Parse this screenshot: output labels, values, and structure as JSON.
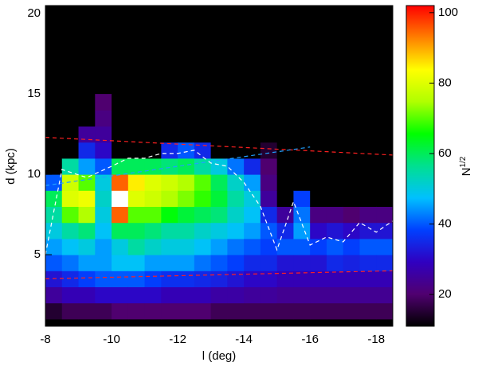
{
  "chart_data": {
    "type": "heatmap",
    "xlabel": "l (deg)",
    "ylabel": "d (kpc)",
    "colorbar_label": {
      "base": "N",
      "sup": "1/2"
    },
    "xlim": [
      -8,
      -18.5
    ],
    "xticks": [
      -8,
      -10,
      -12,
      -14,
      -16,
      -18
    ],
    "ylim": [
      0.55,
      20.5
    ],
    "yticks": [
      5,
      10,
      15,
      20
    ],
    "clim": [
      11,
      102
    ],
    "cticks": [
      20,
      40,
      60,
      80,
      100
    ],
    "colormap": [
      "#000000",
      "#500070",
      "#3000c0",
      "#0040ff",
      "#00c0ff",
      "#00e090",
      "#00ff00",
      "#b0ff00",
      "#ffff00",
      "#ff8000",
      "#ff0000"
    ],
    "over_color": "#ffffff",
    "background": "#000000",
    "xbins": [
      -8,
      -8.5,
      -9,
      -9.5,
      -10,
      -10.5,
      -11,
      -11.5,
      -12,
      -12.5,
      -13,
      -13.5,
      -14,
      -14.5,
      -15,
      -15.5,
      -16,
      -16.5,
      -17,
      -17.5,
      -18,
      -18.5
    ],
    "ybins": [
      1,
      2,
      3,
      4,
      5,
      6,
      7,
      8,
      9,
      10,
      11,
      12,
      13,
      14,
      15
    ],
    "z": [
      [
        15,
        25,
        32,
        40,
        45,
        50,
        55,
        60,
        40,
        10,
        10,
        10,
        10,
        10
      ],
      [
        18,
        28,
        35,
        42,
        48,
        55,
        70,
        80,
        78,
        55,
        10,
        10,
        10,
        10
      ],
      [
        18,
        28,
        38,
        45,
        50,
        58,
        75,
        82,
        70,
        45,
        35,
        25,
        10,
        10
      ],
      [
        18,
        30,
        40,
        45,
        45,
        48,
        50,
        52,
        50,
        40,
        30,
        25,
        22,
        20
      ],
      [
        20,
        30,
        40,
        48,
        50,
        60,
        95,
        105,
        95,
        60,
        10,
        10,
        10,
        10
      ],
      [
        20,
        30,
        40,
        48,
        55,
        60,
        70,
        80,
        85,
        60,
        10,
        10,
        10,
        10
      ],
      [
        20,
        30,
        38,
        45,
        52,
        58,
        70,
        78,
        80,
        60,
        10,
        10,
        10,
        10
      ],
      [
        20,
        28,
        36,
        45,
        50,
        55,
        65,
        75,
        78,
        58,
        35,
        10,
        10,
        10
      ],
      [
        20,
        28,
        36,
        45,
        50,
        55,
        62,
        72,
        75,
        60,
        40,
        10,
        10,
        10
      ],
      [
        20,
        28,
        35,
        42,
        48,
        52,
        60,
        68,
        70,
        55,
        35,
        10,
        10,
        10
      ],
      [
        18,
        26,
        34,
        40,
        45,
        50,
        58,
        62,
        60,
        50,
        10,
        10,
        10,
        10
      ],
      [
        18,
        26,
        32,
        38,
        42,
        48,
        52,
        55,
        52,
        42,
        10,
        10,
        10,
        10
      ],
      [
        18,
        25,
        30,
        35,
        40,
        45,
        48,
        50,
        45,
        35,
        10,
        10,
        10,
        10
      ],
      [
        18,
        25,
        30,
        35,
        38,
        40,
        35,
        25,
        22,
        20,
        15,
        10,
        10,
        10
      ],
      [
        18,
        24,
        28,
        32,
        40,
        35,
        25,
        10,
        10,
        10,
        10,
        10,
        10,
        10
      ],
      [
        18,
        24,
        28,
        32,
        40,
        45,
        42,
        38,
        10,
        10,
        10,
        10,
        10,
        10
      ],
      [
        18,
        24,
        28,
        32,
        38,
        30,
        22,
        10,
        10,
        10,
        10,
        10,
        10,
        10
      ],
      [
        18,
        24,
        28,
        35,
        40,
        32,
        22,
        10,
        10,
        10,
        10,
        10,
        10,
        10
      ],
      [
        18,
        24,
        28,
        34,
        38,
        30,
        20,
        10,
        10,
        10,
        10,
        10,
        10,
        10
      ],
      [
        18,
        24,
        28,
        35,
        40,
        32,
        22,
        10,
        10,
        10,
        10,
        10,
        10,
        10
      ],
      [
        18,
        24,
        28,
        35,
        40,
        32,
        22,
        10,
        10,
        10,
        10,
        10,
        10,
        10
      ]
    ],
    "lines": [
      {
        "color": "#ff2020",
        "x": [
          -8,
          -18.5
        ],
        "y": [
          12.3,
          11.2
        ]
      },
      {
        "color": "#ff2020",
        "x": [
          -8,
          -18.5
        ],
        "y": [
          3.5,
          4.0
        ]
      },
      {
        "color": "#20a0ff",
        "x": [
          -8,
          -16
        ],
        "y": [
          9.3,
          11.7
        ]
      },
      {
        "color": "#ffffff",
        "x": [
          -8,
          -8.5,
          -9.25,
          -10,
          -10.5,
          -11,
          -11.5,
          -12,
          -12.5,
          -13,
          -13.5,
          -14,
          -14.5,
          -15,
          -15.5,
          -16,
          -16.5,
          -17,
          -17.5,
          -18,
          -18.5
        ],
        "y": [
          5,
          10.3,
          9.8,
          10.5,
          11,
          11,
          11.3,
          11.3,
          11.5,
          10.7,
          10.5,
          9.5,
          8,
          5.3,
          8.3,
          5.6,
          6.1,
          5.8,
          7.0,
          6.4,
          7.1
        ]
      }
    ]
  }
}
